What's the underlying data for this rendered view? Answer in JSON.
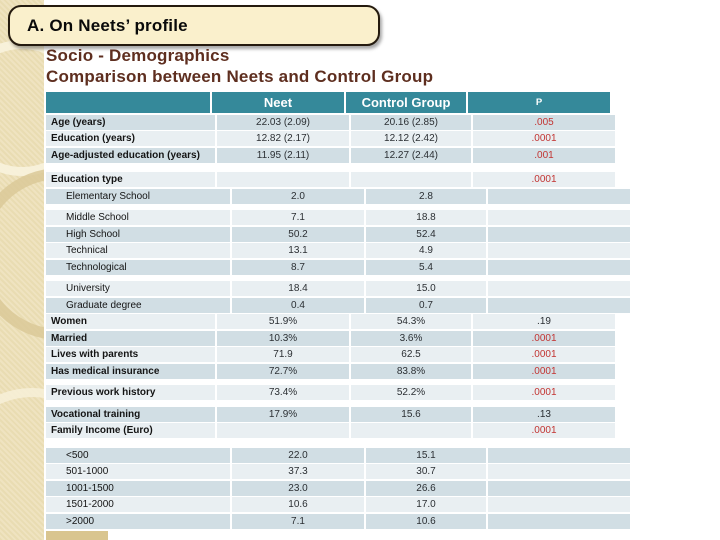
{
  "slide": {
    "title_box": "A. On Neets’ profile",
    "heading_line1": "Socio - Demographics",
    "heading_line2": "Comparison between Neets and Control Group"
  },
  "colors": {
    "header_teal": "#35899a",
    "row_dark": "#d1dee4",
    "row_light": "#e9eff2",
    "p_red": "#c23432",
    "heading_maroon": "#5e2e1f",
    "band_tan": "#ebdfb6",
    "title_box_cream": "#faf0cc"
  },
  "table": {
    "columns": [
      "",
      "Neet",
      "Control Group",
      "P"
    ],
    "rows": [
      {
        "label": "Age (years)",
        "bold": true,
        "indent": false,
        "neet": "22.03 (2.09)",
        "control": "20.16 (2.85)",
        "p": ".005",
        "p_red": true,
        "shade": "dark"
      },
      {
        "label": "Education (years)",
        "bold": true,
        "indent": false,
        "neet": "12.82 (2.17)",
        "control": "12.12 (2.42)",
        "p": ".0001",
        "p_red": true,
        "shade": "light"
      },
      {
        "label": "Age-adjusted education (years)",
        "bold": true,
        "indent": false,
        "neet": "11.95 (2.11)",
        "control": "12.27 (2.44)",
        "p": ".001",
        "p_red": true,
        "shade": "dark",
        "gap_after": 8
      },
      {
        "label": "Education type",
        "bold": true,
        "indent": false,
        "neet": "",
        "control": "",
        "p": ".0001",
        "p_red": true,
        "shade": "light"
      },
      {
        "label": "Elementary School",
        "bold": false,
        "indent": true,
        "neet": "2.0",
        "control": "2.8",
        "p": "",
        "p_red": false,
        "shade": "dark",
        "gap_after": 5
      },
      {
        "label": "Middle School",
        "bold": false,
        "indent": true,
        "neet": "7.1",
        "control": "18.8",
        "p": "",
        "p_red": false,
        "shade": "light"
      },
      {
        "label": "High School",
        "bold": false,
        "indent": true,
        "neet": "50.2",
        "control": "52.4",
        "p": "",
        "p_red": false,
        "shade": "dark"
      },
      {
        "label": "Technical",
        "bold": false,
        "indent": true,
        "neet": "13.1",
        "control": "4.9",
        "p": "",
        "p_red": false,
        "shade": "light"
      },
      {
        "label": "Technological",
        "bold": false,
        "indent": true,
        "neet": "8.7",
        "control": "5.4",
        "p": "",
        "p_red": false,
        "shade": "dark",
        "gap_after": 5
      },
      {
        "label": "University",
        "bold": false,
        "indent": true,
        "neet": "18.4",
        "control": "15.0",
        "p": "",
        "p_red": false,
        "shade": "light"
      },
      {
        "label": "Graduate degree",
        "bold": false,
        "indent": true,
        "neet": "0.4",
        "control": "0.7",
        "p": "",
        "p_red": false,
        "shade": "dark"
      },
      {
        "label": "Women",
        "bold": true,
        "indent": false,
        "neet": "51.9%",
        "control": "54.3%",
        "p": ".19",
        "p_red": false,
        "shade": "light"
      },
      {
        "label": "Married",
        "bold": true,
        "indent": false,
        "neet": "10.3%",
        "control": "3.6%",
        "p": ".0001",
        "p_red": true,
        "shade": "dark"
      },
      {
        "label": "Lives with parents",
        "bold": true,
        "indent": false,
        "neet": "71.9",
        "control": "62.5",
        "p": ".0001",
        "p_red": true,
        "shade": "light"
      },
      {
        "label": "Has medical insurance",
        "bold": true,
        "indent": false,
        "neet": "72.7%",
        "control": "83.8%",
        "p": ".0001",
        "p_red": true,
        "shade": "dark",
        "gap_after": 5
      },
      {
        "label": "Previous work history",
        "bold": true,
        "indent": false,
        "neet": "73.4%",
        "control": "52.2%",
        "p": ".0001",
        "p_red": true,
        "shade": "light",
        "gap_after": 5
      },
      {
        "label": "Vocational training",
        "bold": true,
        "indent": false,
        "neet": "17.9%",
        "control": "15.6",
        "p": ".13",
        "p_red": false,
        "shade": "dark"
      },
      {
        "label": "Family Income (Euro)",
        "bold": true,
        "indent": false,
        "neet": "",
        "control": "",
        "p": ".0001",
        "p_red": true,
        "shade": "light",
        "gap_after": 8
      },
      {
        "label": "<500",
        "bold": false,
        "indent": true,
        "neet": "22.0",
        "control": "15.1",
        "p": "",
        "p_red": false,
        "shade": "dark"
      },
      {
        "label": "501-1000",
        "bold": false,
        "indent": true,
        "neet": "37.3",
        "control": "30.7",
        "p": "",
        "p_red": false,
        "shade": "light"
      },
      {
        "label": "1001-1500",
        "bold": false,
        "indent": true,
        "neet": "23.0",
        "control": "26.6",
        "p": "",
        "p_red": false,
        "shade": "dark"
      },
      {
        "label": "1501-2000",
        "bold": false,
        "indent": true,
        "neet": "10.6",
        "control": "17.0",
        "p": "",
        "p_red": false,
        "shade": "light"
      },
      {
        "label": ">2000",
        "bold": false,
        "indent": true,
        "neet": "7.1",
        "control": "10.6",
        "p": "",
        "p_red": false,
        "shade": "dark"
      }
    ]
  }
}
